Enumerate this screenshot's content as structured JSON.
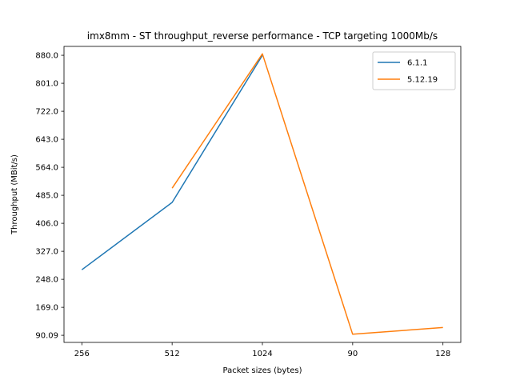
{
  "chart_data": {
    "type": "line",
    "title": "imx8mm - ST throughput_reverse performance - TCP targeting 1000Mb/s",
    "xlabel": "Packet sizes (bytes)",
    "ylabel": "Throughput (MBit/s)",
    "categories": [
      "256",
      "512",
      "1024",
      "90",
      "128"
    ],
    "yticks": [
      "90.09",
      "169.0",
      "248.0",
      "327.0",
      "406.0",
      "485.0",
      "564.0",
      "643.0",
      "722.0",
      "801.0",
      "880.0"
    ],
    "ylim": [
      70,
      905
    ],
    "grid": false,
    "legend_position": "top-right",
    "series": [
      {
        "name": "6.1.1",
        "color": "#1f77b4",
        "values": [
          275,
          465,
          880,
          null,
          null
        ]
      },
      {
        "name": "5.12.19",
        "color": "#ff7f0e",
        "values": [
          null,
          505,
          884,
          93,
          112
        ]
      }
    ]
  }
}
